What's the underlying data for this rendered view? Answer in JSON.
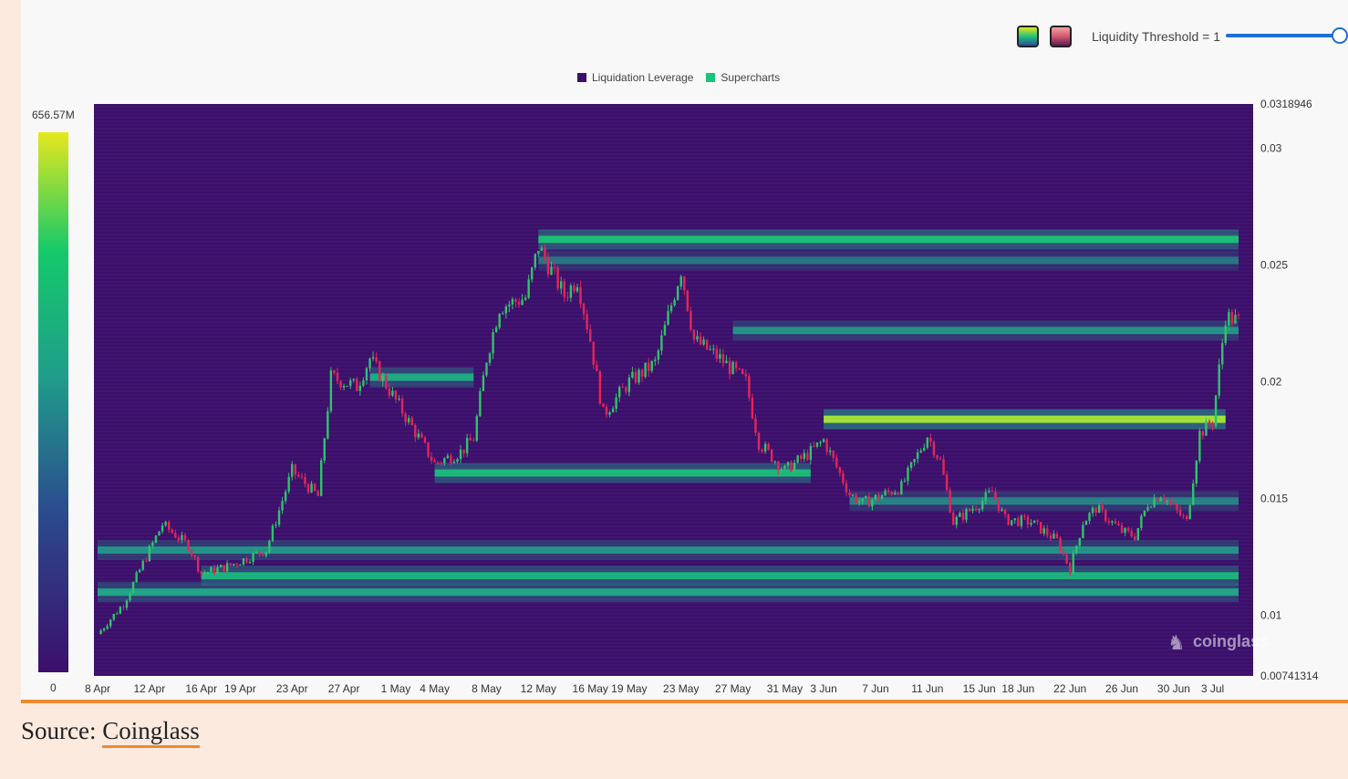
{
  "controls": {
    "threshold_label": "Liquidity Threshold = 1",
    "threshold_value": 1,
    "swatch_icons": [
      "gradient-green-swatch-icon",
      "gradient-red-swatch-icon"
    ]
  },
  "colors": {
    "heat_low": "#3b0f6b",
    "heat_mid": "#1f9e8a",
    "heat_high": "#e6e81d",
    "candle_up": "#2fc46b",
    "candle_down": "#e2265a",
    "accent": "#ef8a2f"
  },
  "source": {
    "prefix": "Source: ",
    "link": "Coinglass"
  },
  "watermark": "coinglass",
  "chart_data": {
    "type": "heatmap",
    "legend": [
      {
        "name": "Liquidation Leverage",
        "color": "#3b0f6b"
      },
      {
        "name": "Supercharts",
        "color": "#17c57a"
      }
    ],
    "colorbar": {
      "max_label": "656.57M",
      "min_label": "0"
    },
    "x_ticks": [
      "8 Apr",
      "12 Apr",
      "16 Apr",
      "19 Apr",
      "23 Apr",
      "27 Apr",
      "1 May",
      "4 May",
      "8 May",
      "12 May",
      "16 May",
      "19 May",
      "23 May",
      "27 May",
      "31 May",
      "3 Jun",
      "7 Jun",
      "11 Jun",
      "15 Jun",
      "18 Jun",
      "22 Jun",
      "26 Jun",
      "30 Jun",
      "3 Jul"
    ],
    "y_ticks": [
      0.03,
      0.025,
      0.02,
      0.015,
      0.01
    ],
    "y_top_label": "0.0318946",
    "y_bottom_label": "0.00741314",
    "ylim": [
      0.00741314,
      0.0318946
    ],
    "price_path": [
      [
        "8 Apr",
        0.0092
      ],
      [
        "10 Apr",
        0.0105
      ],
      [
        "12 Apr",
        0.0128
      ],
      [
        "13 Apr",
        0.0139
      ],
      [
        "15 Apr",
        0.013
      ],
      [
        "16 Apr",
        0.0118
      ],
      [
        "18 Apr",
        0.0121
      ],
      [
        "21 Apr",
        0.0128
      ],
      [
        "23 Apr",
        0.0162
      ],
      [
        "25 Apr",
        0.0151
      ],
      [
        "26 Apr",
        0.0202
      ],
      [
        "28 Apr",
        0.0198
      ],
      [
        "29 Apr",
        0.021
      ],
      [
        "1 May",
        0.0192
      ],
      [
        "4 May",
        0.0165
      ],
      [
        "6 May",
        0.017
      ],
      [
        "7 May",
        0.0176
      ],
      [
        "8 May",
        0.021
      ],
      [
        "9 May",
        0.0232
      ],
      [
        "11 May",
        0.0236
      ],
      [
        "12 May",
        0.0258
      ],
      [
        "14 May",
        0.0237
      ],
      [
        "15 May",
        0.0244
      ],
      [
        "16 May",
        0.0218
      ],
      [
        "17 May",
        0.0186
      ],
      [
        "19 May",
        0.02
      ],
      [
        "21 May",
        0.0208
      ],
      [
        "23 May",
        0.0248
      ],
      [
        "24 May",
        0.0218
      ],
      [
        "26 May",
        0.021
      ],
      [
        "28 May",
        0.02
      ],
      [
        "29 May",
        0.0174
      ],
      [
        "31 May",
        0.0162
      ],
      [
        "2 Jun",
        0.017
      ],
      [
        "3 Jun",
        0.0175
      ],
      [
        "5 Jun",
        0.0152
      ],
      [
        "6 Jun",
        0.0148
      ],
      [
        "9 Jun",
        0.0155
      ],
      [
        "11 Jun",
        0.0177
      ],
      [
        "12 Jun",
        0.0166
      ],
      [
        "13 Jun",
        0.014
      ],
      [
        "15 Jun",
        0.0148
      ],
      [
        "16 Jun",
        0.0153
      ],
      [
        "17 Jun",
        0.0141
      ],
      [
        "19 Jun",
        0.014
      ],
      [
        "21 Jun",
        0.0132
      ],
      [
        "22 Jun",
        0.012
      ],
      [
        "23 Jun",
        0.014
      ],
      [
        "24 Jun",
        0.0146
      ],
      [
        "26 Jun",
        0.0136
      ],
      [
        "27 Jun",
        0.0134
      ],
      [
        "28 Jun",
        0.0148
      ],
      [
        "29 Jun",
        0.0152
      ],
      [
        "30 Jun",
        0.0146
      ],
      [
        "1 Jul",
        0.014
      ],
      [
        "2 Jul",
        0.0178
      ],
      [
        "3 Jul",
        0.0183
      ],
      [
        "4 Jul",
        0.0228
      ],
      [
        "5 Jul",
        0.0226
      ]
    ],
    "liquidity_bands": [
      {
        "price": 0.0261,
        "from": "12 May",
        "to": "5 Jul",
        "intensity": 0.75
      },
      {
        "price": 0.0252,
        "from": "12 May",
        "to": "5 Jul",
        "intensity": 0.35
      },
      {
        "price": 0.0222,
        "from": "27 May",
        "to": "5 Jul",
        "intensity": 0.45
      },
      {
        "price": 0.0202,
        "from": "29 Apr",
        "to": "7 May",
        "intensity": 0.6
      },
      {
        "price": 0.0184,
        "from": "3 Jun",
        "to": "4 Jul",
        "intensity": 0.95
      },
      {
        "price": 0.0161,
        "from": "4 May",
        "to": "2 Jun",
        "intensity": 0.7
      },
      {
        "price": 0.0149,
        "from": "5 Jun",
        "to": "5 Jul",
        "intensity": 0.4
      },
      {
        "price": 0.0128,
        "from": "8 Apr",
        "to": "5 Jul",
        "intensity": 0.45
      },
      {
        "price": 0.0117,
        "from": "16 Apr",
        "to": "5 Jul",
        "intensity": 0.65
      },
      {
        "price": 0.011,
        "from": "8 Apr",
        "to": "5 Jul",
        "intensity": 0.55
      }
    ]
  }
}
